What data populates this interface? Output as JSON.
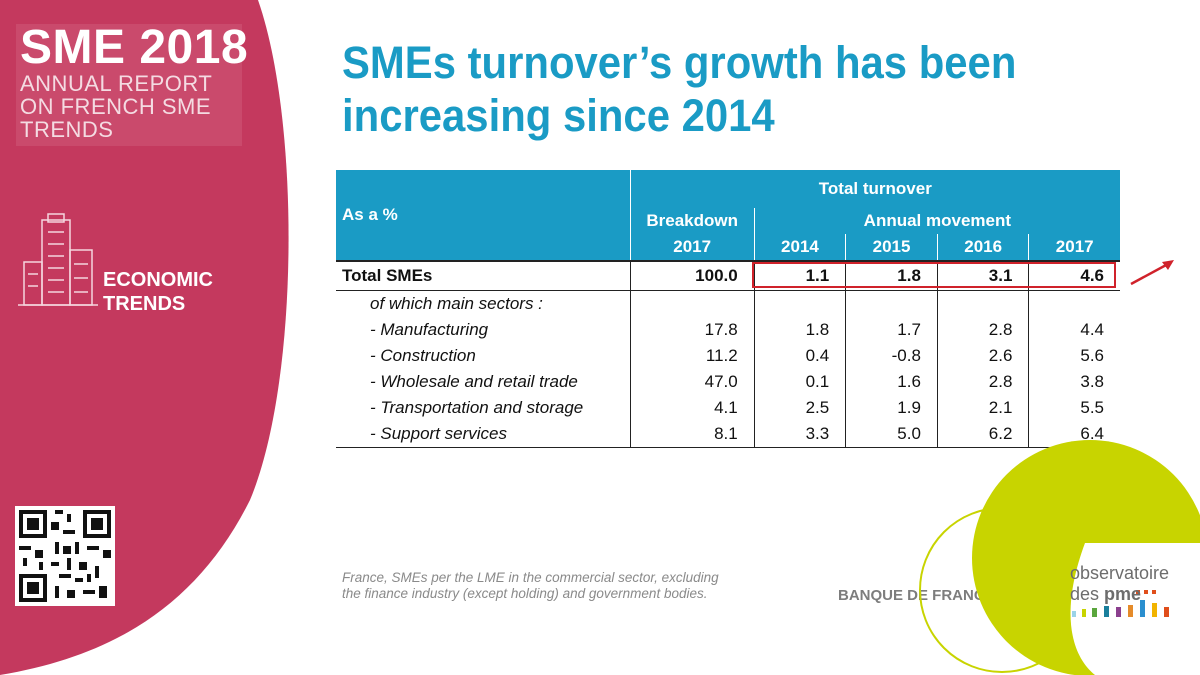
{
  "sidebar": {
    "report_title": "SME 2018",
    "report_sub1": "ANNUAL REPORT",
    "report_sub2": "ON FRENCH SME",
    "report_sub3": "TRENDS",
    "section1": "ECONOMIC",
    "section2": "TRENDS",
    "icon": "building-icon",
    "qr_icon": "qr-code-icon",
    "color": "#c4395e"
  },
  "title": {
    "line1": "SMEs turnover’s growth has been",
    "line2": "increasing since 2014",
    "color": "#1a9bc5"
  },
  "table": {
    "as_a_pct": "As a %",
    "total_turnover": "Total turnover",
    "breakdown": "Breakdown",
    "breakdown_year": "2017",
    "annual_movement": "Annual movement",
    "years": [
      "2014",
      "2015",
      "2016",
      "2017"
    ],
    "total_row": {
      "label": "Total SMEs",
      "breakdown": "100.0",
      "values": [
        "1.1",
        "1.8",
        "3.1",
        "4.6"
      ]
    },
    "section_label": "of which main sectors :",
    "rows": [
      {
        "label": "- Manufacturing",
        "breakdown": "17.8",
        "values": [
          "1.8",
          "1.7",
          "2.8",
          "4.4"
        ]
      },
      {
        "label": "- Construction",
        "breakdown": "11.2",
        "values": [
          "0.4",
          "-0.8",
          "2.6",
          "5.6"
        ]
      },
      {
        "label": "- Wholesale and retail trade",
        "breakdown": "47.0",
        "values": [
          "0.1",
          "1.6",
          "2.8",
          "3.8"
        ]
      },
      {
        "label": "- Transportation and storage",
        "breakdown": "4.1",
        "values": [
          "2.5",
          "1.9",
          "2.1",
          "5.5"
        ]
      },
      {
        "label": "- Support services",
        "breakdown": "8.1",
        "values": [
          "3.3",
          "5.0",
          "6.2",
          "6.4"
        ]
      }
    ],
    "header_color": "#1a9bc5",
    "highlight_color": "#d0222b"
  },
  "footer": {
    "note1": "France, SMEs per the LME in the commercial sector, excluding",
    "note2": "the finance industry (except holding) and government bodies.",
    "bdf": "BANQUE DE FRANCE for",
    "obs_title": "observatoire",
    "obs_des": "des",
    "obs_pme": "pme",
    "logo_color": "#c8d400"
  }
}
